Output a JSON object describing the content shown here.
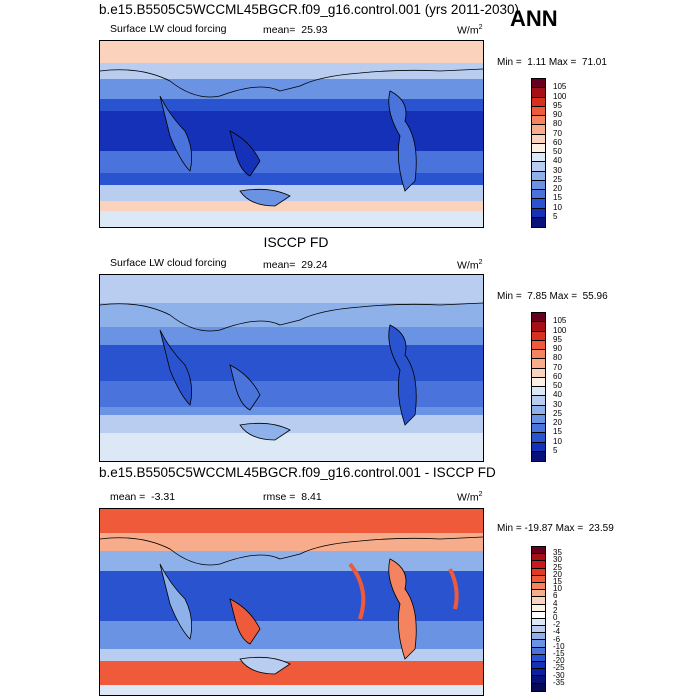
{
  "header": {
    "case_title": "b.e15.B5505C5WCCML45BGCR.f09_g16.control.001 (yrs 2011-2030)",
    "season": "ANN",
    "obs_title": "ISCCP FD",
    "diff_title": "b.e15.B5505C5WCCML45BGCR.f09_g16.control.001 - ISCCP FD"
  },
  "panels": [
    {
      "field_label": "Surface LW cloud forcing",
      "mean_label": "mean=",
      "mean_value": "25.93",
      "units": "W/m",
      "units_sup": "2",
      "min_label": "Min =",
      "min_value": "1.11",
      "max_label": "Max =",
      "max_value": "71.01",
      "colorbar_levels": [
        "105",
        "100",
        "95",
        "90",
        "80",
        "70",
        "60",
        "50",
        "40",
        "30",
        "25",
        "20",
        "15",
        "10",
        "5"
      ]
    },
    {
      "field_label": "Surface LW cloud forcing",
      "mean_label": "mean=",
      "mean_value": "29.24",
      "units": "W/m",
      "units_sup": "2",
      "min_label": "Min =",
      "min_value": "7.85",
      "max_label": "Max =",
      "max_value": "55.96",
      "colorbar_levels": [
        "105",
        "100",
        "95",
        "90",
        "80",
        "70",
        "60",
        "50",
        "40",
        "30",
        "25",
        "20",
        "15",
        "10",
        "5"
      ]
    },
    {
      "field_label": "mean =",
      "mean_value": "-3.31",
      "rmse_label": "rmse =",
      "rmse_value": "8.41",
      "units": "W/m",
      "units_sup": "2",
      "min_label": "Min =",
      "min_value": "-19.87",
      "max_label": "Max =",
      "max_value": "23.59",
      "colorbar_levels": [
        "35",
        "30",
        "25",
        "20",
        "15",
        "10",
        "6",
        "4",
        "2",
        "0",
        "-2",
        "-4",
        "-6",
        "-10",
        "-15",
        "-20",
        "-25",
        "-30",
        "-35"
      ]
    }
  ],
  "colors": {
    "abs_scale": [
      "#67001f",
      "#a50f15",
      "#d7301f",
      "#ef5b3a",
      "#f4845f",
      "#f7ac8c",
      "#fbd3bd",
      "#fdf1e6",
      "#dde8f6",
      "#b8cdf0",
      "#8fb1ea",
      "#6b93e3",
      "#4a74db",
      "#2a53cf",
      "#1431b8",
      "#08117a"
    ],
    "diff_scale": [
      "#67001f",
      "#a50f15",
      "#cb181d",
      "#e03b22",
      "#ef5b3a",
      "#f4845f",
      "#f7ac8c",
      "#fbd3bd",
      "#fdf1e6",
      "#ffffff",
      "#dde8f6",
      "#b8cdf0",
      "#8fb1ea",
      "#6b93e3",
      "#4a74db",
      "#2a53cf",
      "#1431b8",
      "#0c1f9e",
      "#08117a",
      "#050a55"
    ]
  }
}
